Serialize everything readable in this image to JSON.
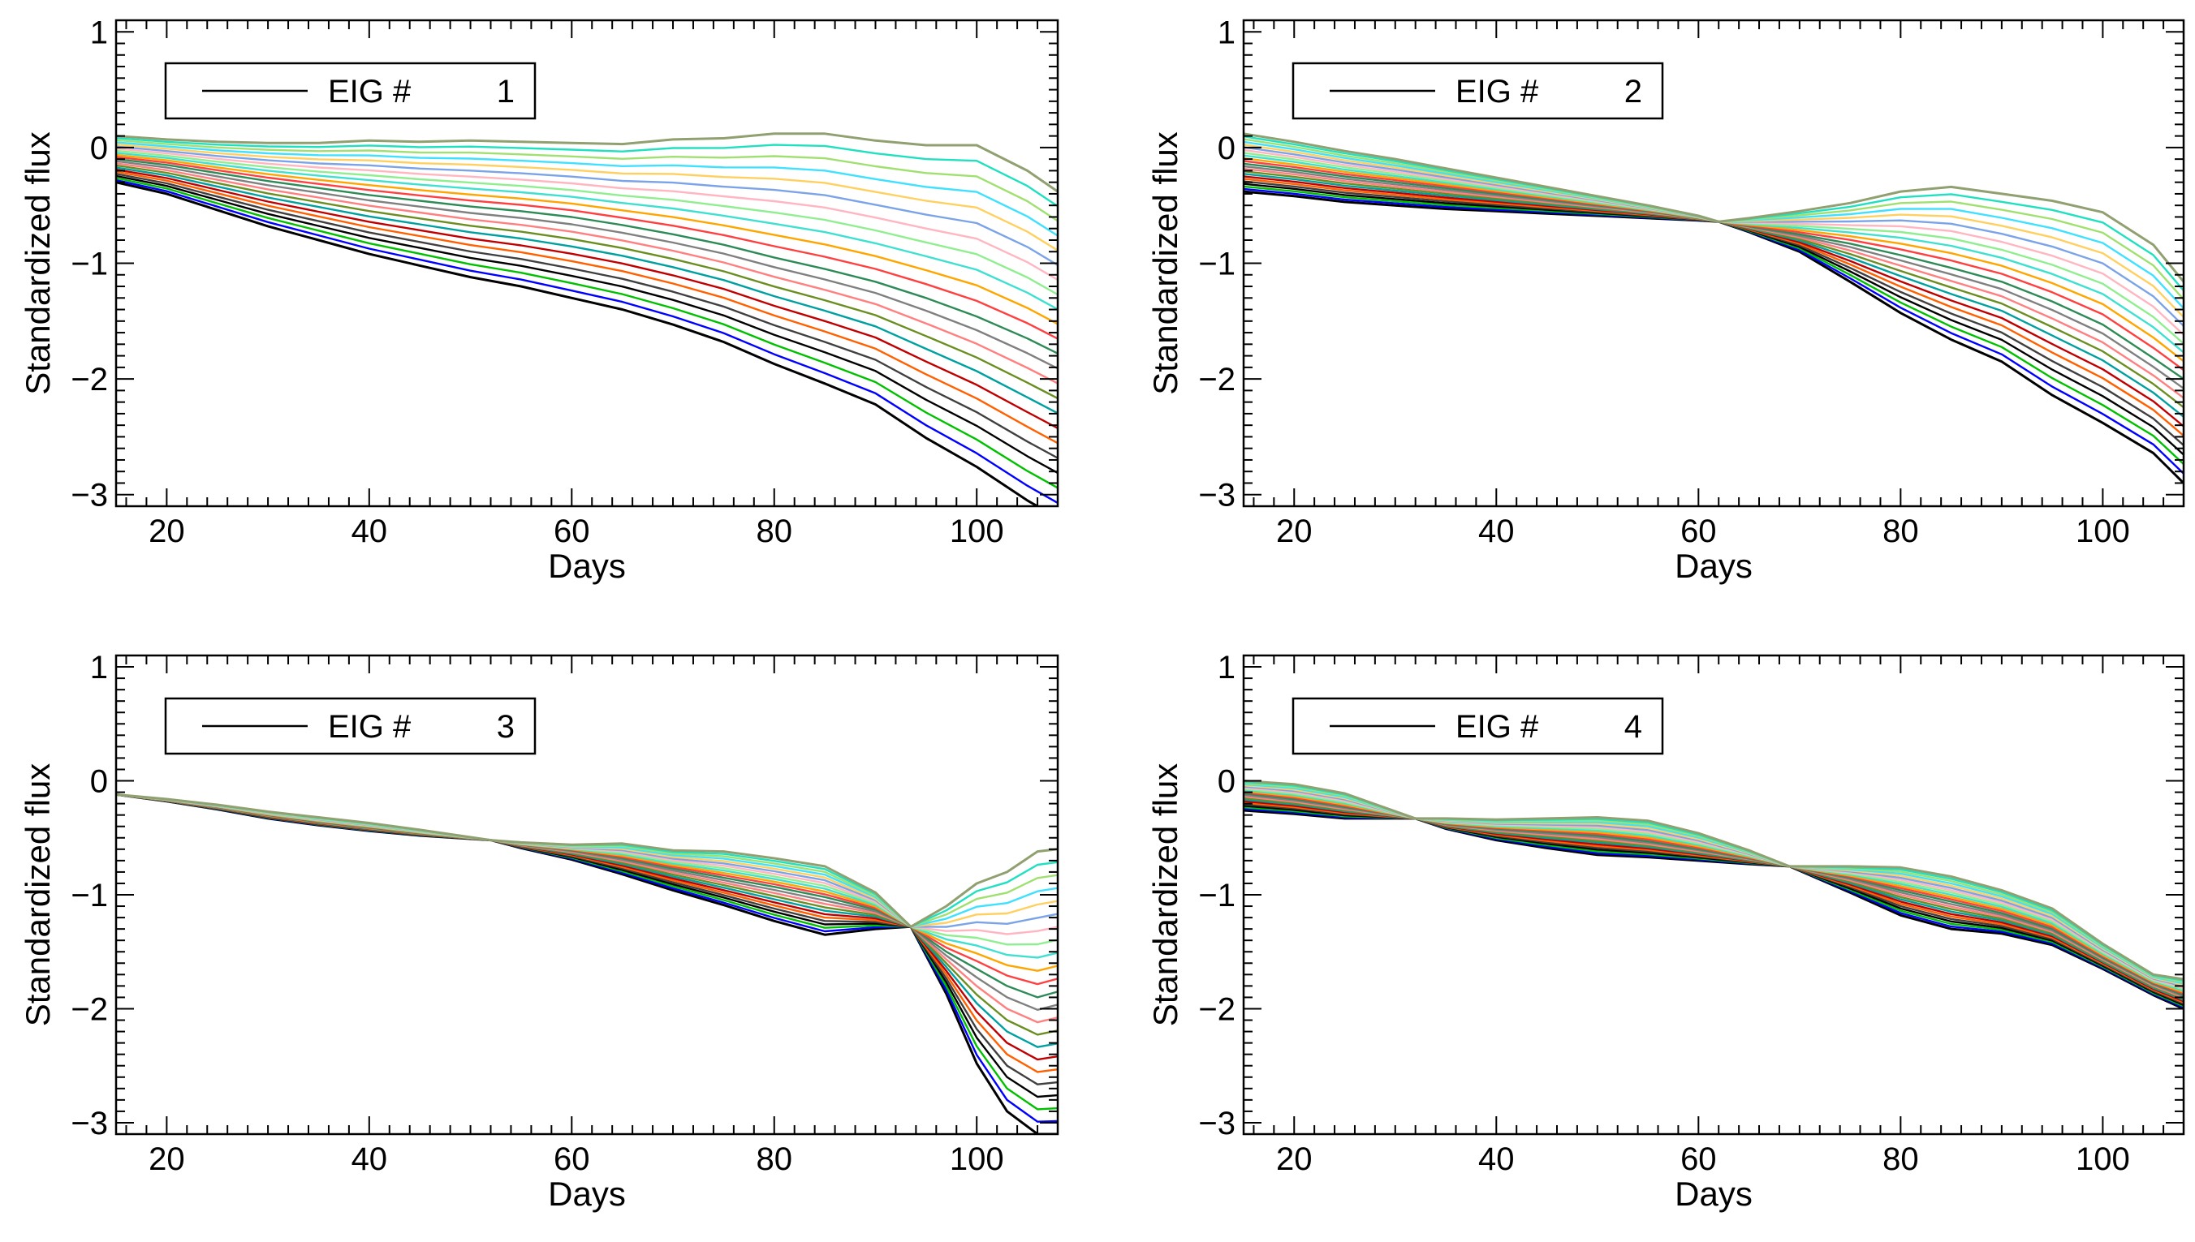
{
  "chart_data": [
    {
      "type": "line",
      "panel": "top-left",
      "xlabel": "Days",
      "ylabel": "Standardized flux",
      "xlim": [
        15,
        108
      ],
      "ylim": [
        -3.1,
        1.1
      ],
      "xticks": [
        20,
        40,
        60,
        80,
        100
      ],
      "yticks": [
        1,
        0,
        -1,
        -2,
        -3
      ],
      "legend": {
        "label": "EIG #",
        "value": "1",
        "position": "top-left"
      },
      "mean_curve": {
        "x": [
          15,
          20,
          25,
          30,
          35,
          40,
          45,
          50,
          55,
          60,
          65,
          70,
          75,
          80,
          85,
          90,
          95,
          100,
          105,
          108
        ],
        "y": [
          -0.1,
          -0.15,
          -0.22,
          -0.29,
          -0.35,
          -0.41,
          -0.46,
          -0.51,
          -0.55,
          -0.6,
          -0.67,
          -0.75,
          -0.84,
          -0.95,
          -1.05,
          -1.16,
          -1.3,
          -1.46,
          -1.65,
          -1.78
        ]
      },
      "pivots": [],
      "spread_low": [
        0.2,
        0.25,
        0.32,
        0.39,
        0.45,
        0.51,
        0.56,
        0.61,
        0.65,
        0.7,
        0.73,
        0.78,
        0.84,
        0.92,
        0.99,
        1.06,
        1.21,
        1.3,
        1.4,
        1.42
      ],
      "spread_high": [
        0.2,
        0.22,
        0.27,
        0.33,
        0.39,
        0.47,
        0.51,
        0.57,
        0.6,
        0.64,
        0.7,
        0.82,
        0.92,
        1.07,
        1.17,
        1.22,
        1.32,
        1.48,
        1.45,
        1.4
      ],
      "n_curves": 23,
      "colors": [
        "#000000",
        "#0000ff",
        "#00c000",
        "#000000",
        "#404040",
        "#ff6000",
        "#c00000",
        "#00a0a0",
        "#6b8e23",
        "#ff8080",
        "#808080",
        "#2e8b57",
        "#ff4040",
        "#ffa500",
        "#40e0d0",
        "#90ee90",
        "#ffb6c1",
        "#7ba3e8",
        "#ffd060",
        "#40e0ff",
        "#a0e070",
        "#20e0c0",
        "#90a070",
        "#ee40ee"
      ]
    },
    {
      "type": "line",
      "panel": "top-right",
      "xlabel": "Days",
      "ylabel": "Standardized flux",
      "xlim": [
        15,
        108
      ],
      "ylim": [
        -3.1,
        1.1
      ],
      "xticks": [
        20,
        40,
        60,
        80,
        100
      ],
      "yticks": [
        1,
        0,
        -1,
        -2,
        -3
      ],
      "legend": {
        "label": "EIG #",
        "value": "2",
        "position": "top-left"
      },
      "mean_curve": {
        "x": [
          15,
          20,
          25,
          30,
          35,
          40,
          45,
          50,
          55,
          60,
          62,
          65,
          70,
          75,
          80,
          85,
          90,
          95,
          100,
          105,
          108
        ],
        "y": [
          -0.14,
          -0.19,
          -0.25,
          -0.3,
          -0.35,
          -0.4,
          -0.45,
          -0.5,
          -0.55,
          -0.61,
          -0.64,
          -0.68,
          -0.75,
          -0.83,
          -0.93,
          -1.04,
          -1.16,
          -1.33,
          -1.53,
          -1.82,
          -2.0
        ]
      },
      "pivots": [
        62
      ],
      "spread_low": [
        0.24,
        0.23,
        0.22,
        0.2,
        0.18,
        0.15,
        0.12,
        0.09,
        0.06,
        0.02,
        0.0,
        0.05,
        0.15,
        0.33,
        0.5,
        0.62,
        0.69,
        0.81,
        0.85,
        0.82,
        0.9
      ],
      "spread_high": [
        0.26,
        0.24,
        0.22,
        0.2,
        0.17,
        0.14,
        0.11,
        0.08,
        0.05,
        0.02,
        0.0,
        0.07,
        0.2,
        0.35,
        0.55,
        0.7,
        0.76,
        0.87,
        0.97,
        0.98,
        0.84
      ],
      "n_curves": 23,
      "colors": [
        "#000000",
        "#0000ff",
        "#00c000",
        "#000000",
        "#404040",
        "#ff6000",
        "#c00000",
        "#00a0a0",
        "#6b8e23",
        "#ff8080",
        "#808080",
        "#2e8b57",
        "#ff4040",
        "#ffa500",
        "#40e0d0",
        "#90ee90",
        "#ffb6c1",
        "#7ba3e8",
        "#ffd060",
        "#40e0ff",
        "#a0e070",
        "#20e0c0",
        "#90a070",
        "#ee40ee"
      ]
    },
    {
      "type": "line",
      "panel": "bottom-left",
      "xlabel": "Days",
      "ylabel": "Standardized flux",
      "xlim": [
        15,
        108
      ],
      "ylim": [
        -3.1,
        1.1
      ],
      "xticks": [
        20,
        40,
        60,
        80,
        100
      ],
      "yticks": [
        1,
        0,
        -1,
        -2,
        -3
      ],
      "legend": {
        "label": "EIG #",
        "value": "3",
        "position": "top-left"
      },
      "mean_curve": {
        "x": [
          15,
          20,
          25,
          30,
          35,
          40,
          45,
          52,
          55,
          60,
          65,
          70,
          75,
          80,
          85,
          90,
          93.5,
          97,
          100,
          103,
          106,
          108
        ],
        "y": [
          -0.12,
          -0.17,
          -0.23,
          -0.3,
          -0.36,
          -0.41,
          -0.46,
          -0.52,
          -0.56,
          -0.61,
          -0.68,
          -0.77,
          -0.85,
          -0.93,
          -1.02,
          -1.13,
          -1.28,
          -1.5,
          -1.65,
          -1.8,
          -1.9,
          -1.85
        ]
      },
      "pivots": [
        15,
        52,
        93.5
      ],
      "spread_low": [
        0.0,
        0.01,
        0.02,
        0.03,
        0.03,
        0.03,
        0.02,
        0.0,
        0.03,
        0.08,
        0.14,
        0.19,
        0.24,
        0.3,
        0.33,
        0.17,
        0.0,
        0.37,
        0.83,
        1.1,
        1.2,
        1.25
      ],
      "spread_high": [
        0.0,
        0.01,
        0.02,
        0.03,
        0.04,
        0.04,
        0.03,
        0.0,
        0.02,
        0.05,
        0.13,
        0.16,
        0.23,
        0.25,
        0.27,
        0.15,
        0.0,
        0.4,
        0.75,
        1.0,
        1.28,
        1.25
      ],
      "n_curves": 23,
      "colors": [
        "#000000",
        "#0000ff",
        "#00c000",
        "#000000",
        "#404040",
        "#ff6000",
        "#c00000",
        "#00a0a0",
        "#6b8e23",
        "#ff8080",
        "#808080",
        "#2e8b57",
        "#ff4040",
        "#ffa500",
        "#40e0d0",
        "#90ee90",
        "#ffb6c1",
        "#7ba3e8",
        "#ffd060",
        "#40e0ff",
        "#a0e070",
        "#20e0c0",
        "#90a070",
        "#ee40ee"
      ]
    },
    {
      "type": "line",
      "panel": "bottom-right",
      "xlabel": "Days",
      "ylabel": "Standardized flux",
      "xlim": [
        15,
        108
      ],
      "ylim": [
        -3.1,
        1.1
      ],
      "xticks": [
        20,
        40,
        60,
        80,
        100
      ],
      "yticks": [
        1,
        0,
        -1,
        -2,
        -3
      ],
      "legend": {
        "label": "EIG #",
        "value": "4",
        "position": "top-left"
      },
      "mean_curve": {
        "x": [
          15,
          20,
          25,
          32,
          35,
          40,
          45,
          50,
          55,
          60,
          65,
          69,
          75,
          80,
          85,
          90,
          95,
          100,
          105,
          108
        ],
        "y": [
          -0.11,
          -0.16,
          -0.23,
          -0.33,
          -0.38,
          -0.42,
          -0.45,
          -0.48,
          -0.53,
          -0.6,
          -0.68,
          -0.75,
          -0.85,
          -0.96,
          -1.06,
          -1.16,
          -1.3,
          -1.55,
          -1.78,
          -1.88
        ]
      },
      "pivots": [
        32,
        69
      ],
      "spread_low": [
        0.15,
        0.13,
        0.1,
        0.0,
        0.04,
        0.1,
        0.14,
        0.17,
        0.14,
        0.1,
        0.05,
        0.0,
        0.13,
        0.22,
        0.24,
        0.18,
        0.14,
        0.1,
        0.1,
        0.12
      ],
      "spread_high": [
        0.11,
        0.13,
        0.12,
        0.0,
        0.05,
        0.08,
        0.12,
        0.16,
        0.18,
        0.14,
        0.07,
        0.0,
        0.1,
        0.2,
        0.22,
        0.2,
        0.18,
        0.12,
        0.08,
        0.14
      ],
      "n_curves": 23,
      "colors": [
        "#000000",
        "#0000ff",
        "#00c000",
        "#000000",
        "#404040",
        "#ff6000",
        "#c00000",
        "#00a0a0",
        "#6b8e23",
        "#ff8080",
        "#808080",
        "#2e8b57",
        "#ff4040",
        "#ffa500",
        "#40e0d0",
        "#90ee90",
        "#ffb6c1",
        "#7ba3e8",
        "#ffd060",
        "#40e0ff",
        "#a0e070",
        "#20e0c0",
        "#90a070",
        "#ee40ee"
      ]
    }
  ]
}
